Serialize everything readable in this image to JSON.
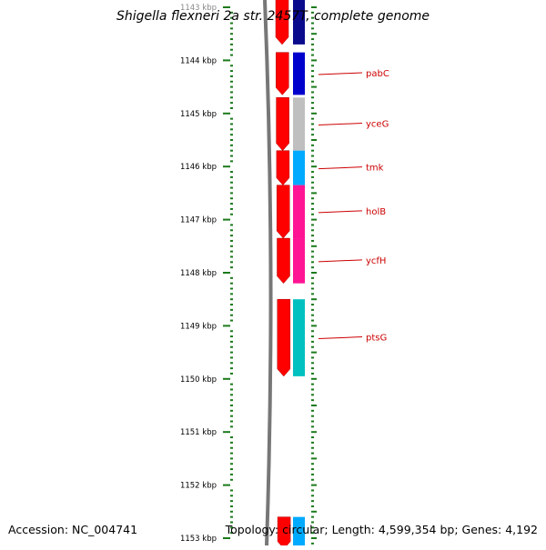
{
  "title": "Shigella flexneri 2a str. 2457T, complete genome",
  "accession": "Accession: NC_004741",
  "summary": "Topology: circular; Length: 4,599,354 bp; Genes: 4,192",
  "ruler": {
    "unit": "kbp",
    "ticks": [
      "1143 kbp",
      "1144 kbp",
      "1145 kbp",
      "1146 kbp",
      "1147 kbp",
      "1148 kbp",
      "1149 kbp",
      "1150 kbp",
      "1151 kbp",
      "1152 kbp",
      "1153 kbp"
    ],
    "start_kbp": 1143,
    "end_kbp": 1153
  },
  "colors": {
    "forward_cds": "#ff0000",
    "label": "#cc0000",
    "ruler": "#1a7a1a",
    "backbone": "#777777"
  },
  "genes": [
    {
      "label": "",
      "start_kbp": 1142.8,
      "end_kbp": 1143.7,
      "color": "#0a0a8c"
    },
    {
      "label": "pabC",
      "start_kbp": 1143.85,
      "end_kbp": 1144.65,
      "color": "#0000cc"
    },
    {
      "label": "yceG",
      "start_kbp": 1144.7,
      "end_kbp": 1145.7,
      "color": "#bfbfbf"
    },
    {
      "label": "tmk",
      "start_kbp": 1145.7,
      "end_kbp": 1146.35,
      "color": "#00aaff"
    },
    {
      "label": "holB",
      "start_kbp": 1146.35,
      "end_kbp": 1147.35,
      "color": "#ff1493"
    },
    {
      "label": "ycfH",
      "start_kbp": 1147.35,
      "end_kbp": 1148.2,
      "color": "#ff1493"
    },
    {
      "label": "ptsG",
      "start_kbp": 1148.5,
      "end_kbp": 1149.95,
      "color": "#00c0c0"
    },
    {
      "label": "",
      "start_kbp": 1152.6,
      "end_kbp": 1153.2,
      "color": "#00aaff"
    }
  ]
}
